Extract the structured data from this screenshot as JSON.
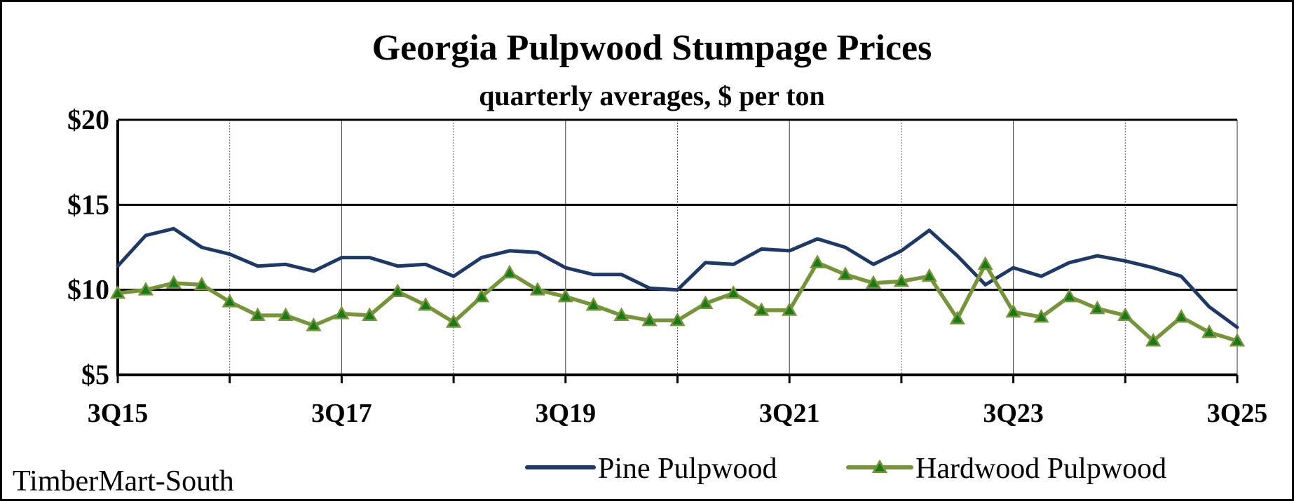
{
  "chart_data": {
    "type": "line",
    "title": "Georgia Pulpwood Stumpage Prices",
    "subtitle": "quarterly averages, $ per ton",
    "xlabel": "",
    "ylabel": "",
    "ylim": [
      5,
      20
    ],
    "y_ticks": [
      "$5",
      "$10",
      "$15",
      "$20"
    ],
    "y_tick_values": [
      5,
      10,
      15,
      20
    ],
    "x_tick_labels": [
      "3Q15",
      "3Q17",
      "3Q19",
      "3Q21",
      "3Q23",
      "3Q25"
    ],
    "x": [
      "3Q15",
      "4Q15",
      "1Q16",
      "2Q16",
      "3Q16",
      "4Q16",
      "1Q17",
      "2Q17",
      "3Q17",
      "4Q17",
      "1Q18",
      "2Q18",
      "3Q18",
      "4Q18",
      "1Q19",
      "2Q19",
      "3Q19",
      "4Q19",
      "1Q20",
      "2Q20",
      "3Q20",
      "4Q20",
      "1Q21",
      "2Q21",
      "3Q21",
      "4Q21",
      "1Q22",
      "2Q22",
      "3Q22",
      "4Q22",
      "1Q23",
      "2Q23",
      "3Q23",
      "4Q23",
      "1Q24",
      "2Q24",
      "3Q24",
      "4Q24",
      "1Q25",
      "2Q25",
      "3Q25"
    ],
    "series": [
      {
        "name": "Pine Pulpwood",
        "color": "#1f3864",
        "marker": "none",
        "values": [
          11.4,
          13.2,
          13.6,
          12.5,
          12.1,
          11.4,
          11.5,
          11.1,
          11.9,
          11.9,
          11.4,
          11.5,
          10.8,
          11.9,
          12.3,
          12.2,
          11.3,
          10.9,
          10.9,
          10.1,
          10.0,
          11.6,
          11.5,
          12.4,
          12.3,
          13.0,
          12.5,
          11.5,
          12.3,
          13.5,
          12.0,
          10.3,
          11.3,
          10.8,
          11.6,
          12.0,
          11.7,
          11.3,
          10.8,
          9.0,
          7.8
        ]
      },
      {
        "name": "Hardwood Pulpwood",
        "color": "#77933c",
        "marker": "triangle",
        "marker_color": "#1a7a1a",
        "values": [
          9.8,
          10.0,
          10.4,
          10.3,
          9.3,
          8.5,
          8.5,
          7.9,
          8.6,
          8.5,
          9.9,
          9.1,
          8.1,
          9.6,
          11.0,
          10.0,
          9.6,
          9.1,
          8.5,
          8.2,
          8.2,
          9.2,
          9.8,
          8.8,
          8.8,
          11.6,
          10.9,
          10.4,
          10.5,
          10.8,
          8.3,
          11.5,
          8.7,
          8.4,
          9.6,
          8.9,
          8.5,
          7.0,
          8.4,
          7.5,
          7.0
        ]
      }
    ],
    "grid": {
      "horizontal": true,
      "vertical": true
    },
    "legend_position": "bottom-right",
    "source": "TimberMart-South"
  }
}
